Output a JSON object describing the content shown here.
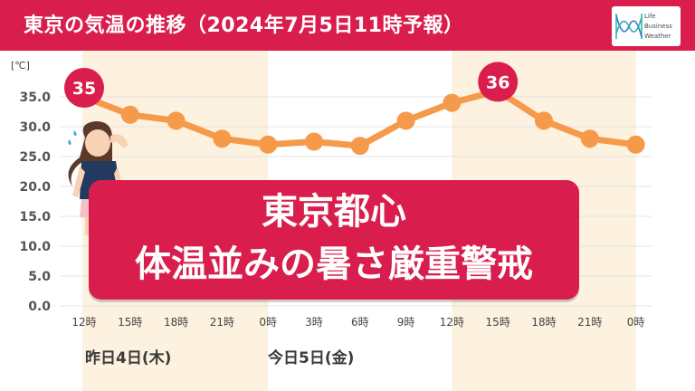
{
  "header": {
    "title": "東京の気温の推移（2024年7月5日11時予報）"
  },
  "logo": {
    "line1": "Life",
    "line2": "Business",
    "line3": "Weather"
  },
  "banner": {
    "line1": "東京都心",
    "line2": "体温並みの暑さ厳重警戒"
  },
  "day_labels": {
    "yesterday": "昨日4日(木)",
    "today": "今日5日(金)"
  },
  "colors": {
    "accent": "#d91e4d",
    "line": "#f59a4a",
    "band": "#fdf1df",
    "grid": "#e4e4e4"
  },
  "chart_data": {
    "type": "line",
    "title": "東京の気温の推移（2024年7月5日11時予報）",
    "ylabel": "[℃]",
    "ylim": [
      0,
      37
    ],
    "yticks": [
      "0.0",
      "5.0",
      "10.0",
      "15.0",
      "20.0",
      "25.0",
      "30.0",
      "35.0"
    ],
    "categories": [
      "12時",
      "15時",
      "18時",
      "21時",
      "0時",
      "3時",
      "6時",
      "9時",
      "12時",
      "15時",
      "18時",
      "21時",
      "0時"
    ],
    "series": [
      {
        "values": [
          35,
          32,
          31,
          28,
          27,
          27.5,
          26.8,
          31,
          34,
          36,
          31,
          28,
          27
        ]
      }
    ],
    "annotations": [
      {
        "label": "35",
        "index": 0
      },
      {
        "label": "36",
        "index": 9
      }
    ],
    "grid": true
  }
}
